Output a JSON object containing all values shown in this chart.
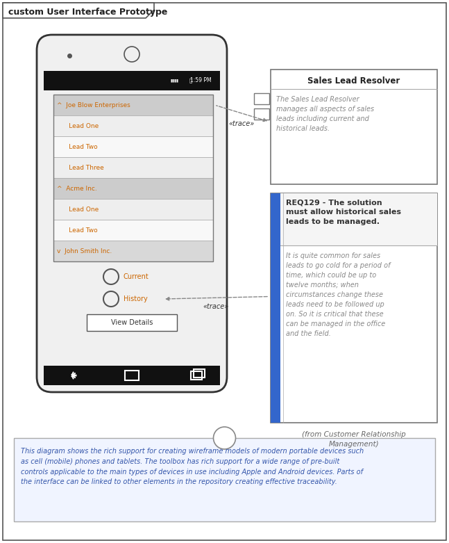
{
  "title": "custom User Interface Prototype",
  "bg_color": "#ffffff",
  "border_color": "#555555",
  "phone": {
    "status_text": "1:59 PM",
    "list_items": [
      {
        "text": "^  Joe Blow Enterprises",
        "bg": "#cccccc",
        "header": true
      },
      {
        "text": "      Lead One",
        "bg": "#eeeeee",
        "header": false
      },
      {
        "text": "      Lead Two",
        "bg": "#f8f8f8",
        "header": false
      },
      {
        "text": "      Lead Three",
        "bg": "#eeeeee",
        "header": false
      },
      {
        "text": "^  Acme Inc.",
        "bg": "#cccccc",
        "header": true
      },
      {
        "text": "      Lead One",
        "bg": "#eeeeee",
        "header": false
      },
      {
        "text": "      Lead Two",
        "bg": "#f8f8f8",
        "header": false
      },
      {
        "text": "v  John Smith Inc.",
        "bg": "#d8d8d8",
        "header": true
      }
    ],
    "radio_labels": [
      "Current",
      "History"
    ],
    "button_text": "View Details"
  },
  "sales_box": {
    "title": "Sales Lead Resolver",
    "desc": "The Sales Lead Resolver\nmanages all aspects of sales\nleads including current and\nhistorical leads.",
    "text_color": "#888888"
  },
  "req_box": {
    "title": "REQ129 - The solution\nmust allow historical sales\nleads to be managed.",
    "desc": "It is quite common for sales\nleads to go cold for a period of\ntime, which could be up to\ntwelve months; when\ncircumstances change these\nleads need to be followed up\non. So it is critical that these\ncan be managed in the office\nand the field.",
    "source": "(from Customer Relationship\nManagement)",
    "title_color": "#333333",
    "desc_color": "#888888",
    "source_color": "#666666",
    "bar_color": "#3366cc"
  },
  "note_box": {
    "text": "This diagram shows the rich support for creating wireframe models of modern portable devices such\nas cell (mobile) phones and tablets. The toolbox has rich support for a wide range of pre-built\ncontrols applicable to the main types of devices in use including Apple and Android devices. Parts of\nthe interface can be linked to other elements in the repository creating effective traceability.",
    "text_color": "#3355aa",
    "bg_color": "#f0f4ff"
  },
  "list_text_color": "#cc6600",
  "trace_label": "«trace»",
  "arrow_color": "#888888"
}
